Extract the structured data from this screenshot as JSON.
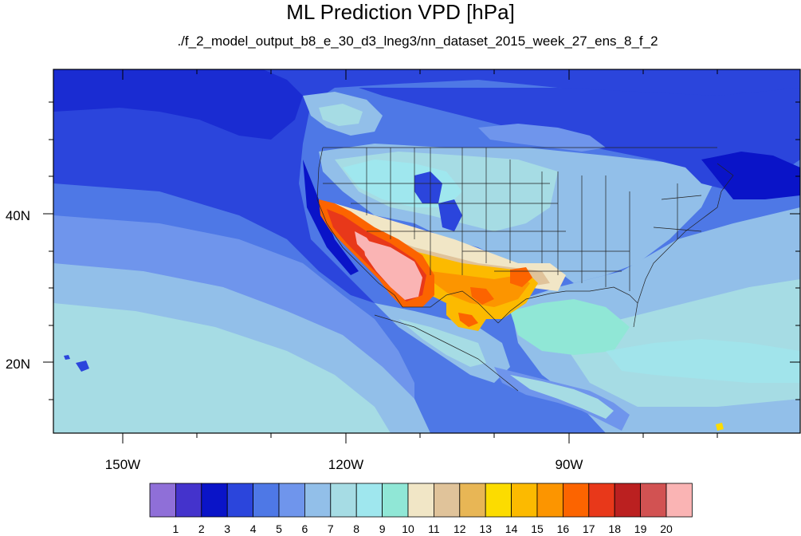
{
  "title": "ML Prediction VPD [hPa]",
  "subtitle": "./f_2_model_output_b8_e_30_d3_lneg3/nn_dataset_2015_week_27_ens_8_f_2",
  "axes": {
    "lon_labels": [
      "150W",
      "120W",
      "90W"
    ],
    "lat_labels": [
      "40N",
      "20N"
    ]
  },
  "colorbar": {
    "labels": [
      "1",
      "2",
      "3",
      "4",
      "5",
      "6",
      "7",
      "8",
      "9",
      "10",
      "11",
      "12",
      "13",
      "14",
      "15",
      "16",
      "17",
      "18",
      "19",
      "20"
    ],
    "colors": [
      "#8f6fd8",
      "#4433cc",
      "#0a14c8",
      "#2b45dc",
      "#4e78e6",
      "#6f95ec",
      "#92bfe9",
      "#a6dce4",
      "#9fe7ee",
      "#90e7d6",
      "#f1e6c6",
      "#e0c39a",
      "#e8b655",
      "#fcdc00",
      "#fcba00",
      "#fc9500",
      "#fc6400",
      "#e8381a",
      "#bb2020",
      "#d25252",
      "#fab4b4"
    ]
  }
}
